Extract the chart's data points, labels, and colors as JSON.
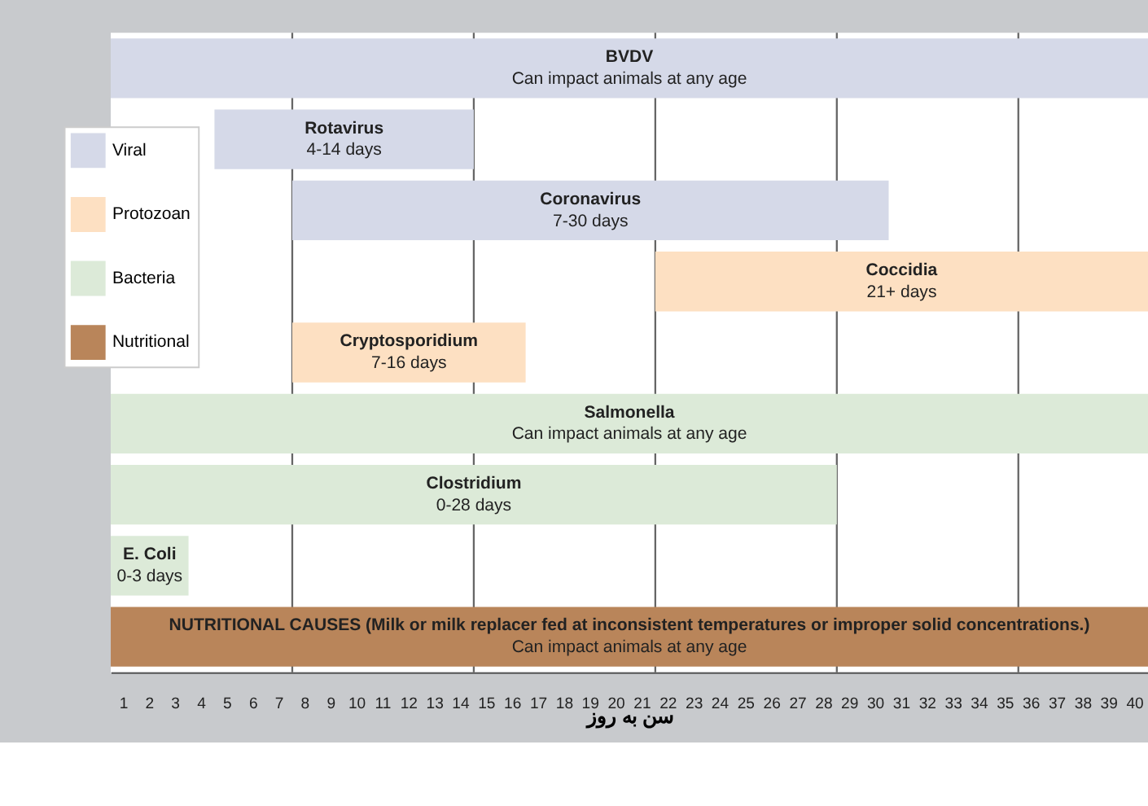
{
  "chart_data": {
    "type": "bar",
    "orientation": "horizontal",
    "categories": [
      "BVDV",
      "Rotavirus",
      "Coronavirus",
      "Coccidia",
      "Cryptosporidium",
      "Salmonella",
      "Clostridium",
      "E. Coli",
      "NUTRITIONAL CAUSES (Milk or milk replacer fed at inconsistent temperatures or improper solid concentrations.)"
    ],
    "series": [
      {
        "name": "Viral",
        "color": "#d5d9e8",
        "base": [
          0,
          4,
          7,
          null,
          null,
          null,
          null,
          null,
          null
        ],
        "values": [
          40,
          10,
          23,
          null,
          null,
          null,
          null,
          null,
          null
        ]
      },
      {
        "name": "Protozoan",
        "color": "#fde0c2",
        "base": [
          null,
          null,
          null,
          21,
          7,
          null,
          null,
          null,
          null
        ],
        "values": [
          null,
          null,
          null,
          19,
          9,
          null,
          null,
          null,
          null
        ]
      },
      {
        "name": "Bacteria",
        "color": "#dcead8",
        "base": [
          null,
          null,
          null,
          null,
          null,
          0,
          0,
          0,
          null
        ],
        "values": [
          null,
          null,
          null,
          null,
          null,
          40,
          28,
          3,
          null
        ]
      },
      {
        "name": "Nutritional",
        "color": "#b9855a",
        "base": [
          null,
          null,
          null,
          null,
          null,
          null,
          null,
          null,
          0
        ],
        "values": [
          null,
          null,
          null,
          null,
          null,
          null,
          null,
          null,
          40
        ]
      }
    ],
    "value_labels": [
      "Can impact animals at any age",
      "4-14 days",
      "7-30 days",
      "21+ days",
      "7-16 days",
      "Can impact animals at any age",
      "0-28 days",
      "0-3 days",
      "Can impact animals at any age"
    ],
    "xlabel": "سن به روز",
    "xlim": [
      0,
      40
    ],
    "xticks": [
      {
        "value": 0.5,
        "label": "1"
      },
      {
        "value": 1.5,
        "label": "2"
      },
      {
        "value": 2.5,
        "label": "3"
      },
      {
        "value": 3.5,
        "label": "4"
      },
      {
        "value": 4.5,
        "label": "5"
      },
      {
        "value": 5.5,
        "label": "6"
      },
      {
        "value": 6.5,
        "label": "7"
      },
      {
        "value": 7.5,
        "label": "8"
      },
      {
        "value": 8.5,
        "label": "9"
      },
      {
        "value": 9.5,
        "label": "10"
      },
      {
        "value": 10.5,
        "label": "11"
      },
      {
        "value": 11.5,
        "label": "12"
      },
      {
        "value": 12.5,
        "label": "13"
      },
      {
        "value": 13.5,
        "label": "14"
      },
      {
        "value": 14.5,
        "label": "15"
      },
      {
        "value": 15.5,
        "label": "16"
      },
      {
        "value": 16.5,
        "label": "17"
      },
      {
        "value": 17.5,
        "label": "18"
      },
      {
        "value": 18.5,
        "label": "19"
      },
      {
        "value": 19.5,
        "label": "20"
      },
      {
        "value": 20.5,
        "label": "21"
      },
      {
        "value": 21.5,
        "label": "22"
      },
      {
        "value": 22.5,
        "label": "23"
      },
      {
        "value": 23.5,
        "label": "24"
      },
      {
        "value": 24.5,
        "label": "25"
      },
      {
        "value": 25.5,
        "label": "26"
      },
      {
        "value": 26.5,
        "label": "27"
      },
      {
        "value": 27.5,
        "label": "28"
      },
      {
        "value": 28.5,
        "label": "29"
      },
      {
        "value": 29.5,
        "label": "30"
      },
      {
        "value": 30.5,
        "label": "31"
      },
      {
        "value": 31.5,
        "label": "32"
      },
      {
        "value": 32.5,
        "label": "33"
      },
      {
        "value": 33.5,
        "label": "34"
      },
      {
        "value": 34.5,
        "label": "35"
      },
      {
        "value": 35.5,
        "label": "36"
      },
      {
        "value": 36.5,
        "label": "37"
      },
      {
        "value": 37.5,
        "label": "38"
      },
      {
        "value": 38.5,
        "label": "39"
      },
      {
        "value": 39.5,
        "label": "40"
      }
    ],
    "ref_lines": [
      {
        "axis": "x",
        "value": 7
      },
      {
        "axis": "x",
        "value": 14
      },
      {
        "axis": "x",
        "value": 21
      },
      {
        "axis": "x",
        "value": 28
      },
      {
        "axis": "x",
        "value": 35
      }
    ],
    "tick_labels": "x",
    "legend": "top left",
    "grid": false
  }
}
